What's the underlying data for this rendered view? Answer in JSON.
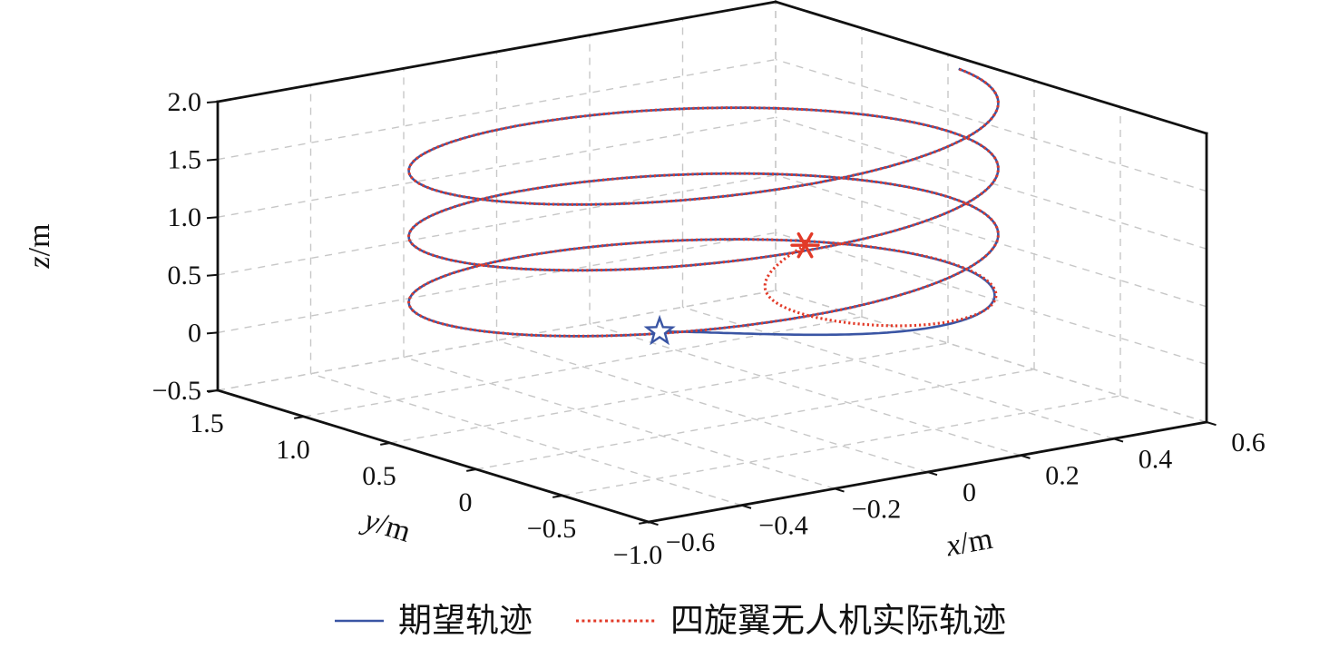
{
  "chart_data": {
    "type": "line",
    "subtype": "3d-trajectory",
    "title": "",
    "axes": {
      "xlabel": "x/m",
      "ylabel": "y/m",
      "zlabel": "z/m",
      "xlim": [
        -0.6,
        0.6
      ],
      "ylim": [
        -1.0,
        1.5
      ],
      "zlim": [
        -0.5,
        2.0
      ],
      "xticks": [
        -0.6,
        -0.4,
        -0.2,
        0,
        0.2,
        0.4,
        0.6
      ],
      "xtick_labels": [
        "−0.6",
        "−0.4",
        "−0.2",
        "0",
        "0.2",
        "0.4",
        "0.6"
      ],
      "yticks": [
        -1.0,
        -0.5,
        0,
        0.5,
        1.0,
        1.5
      ],
      "ytick_labels": [
        "−1.0",
        "−0.5",
        "0",
        "0.5",
        "1.0",
        "1.5"
      ],
      "zticks": [
        -0.5,
        0,
        0.5,
        1.0,
        1.5,
        2.0
      ],
      "ztick_labels": [
        "−0.5",
        "0",
        "0.5",
        "1.0",
        "1.5",
        "2.0"
      ],
      "grid": true
    },
    "grid": {
      "color": "#c7c7c7",
      "dash": "8 7",
      "width": 1.4
    },
    "frame_color": "#111111",
    "series": [
      {
        "name": "期望轨迹",
        "color": "#3a55a4",
        "line": "solid",
        "width": 2.6,
        "path3d": {
          "kind": "rising-helix",
          "center_xy": [
            0,
            0.3
          ],
          "radius_x": 0.55,
          "radius_y": 0.85,
          "angle_start": -0.31,
          "turns": 3.3,
          "z_start": 0.12,
          "z_per_rad": 0.0907,
          "start_point": [
            -0.15,
            0.15,
            0.3
          ],
          "approach_tau": 1.0,
          "time_warp": 0.6
        }
      },
      {
        "name": "四旋翼无人机实际轨迹",
        "color": "#e23a28",
        "line": "dotted",
        "dash": "2.2 3",
        "width": 3.1,
        "path3d": {
          "kind": "follows-desired",
          "start_point": [
            0.2,
            0.25,
            0.75
          ],
          "converge_tau": 0.4
        }
      }
    ],
    "markers": [
      {
        "shape": "star",
        "meaning": "desired-start",
        "color": "#3a55a4",
        "position": [
          -0.15,
          0.15,
          0.3
        ]
      },
      {
        "shape": "asterisk",
        "meaning": "actual-start",
        "color": "#e23a28",
        "position": [
          0.2,
          0.25,
          0.75
        ]
      }
    ],
    "legend": {
      "position": "bottom-center",
      "items": [
        {
          "label": "期望轨迹",
          "color": "#3a55a4",
          "line": "solid"
        },
        {
          "label": "四旋翼无人机实际轨迹",
          "color": "#e23a28",
          "line": "dotted"
        }
      ]
    }
  }
}
